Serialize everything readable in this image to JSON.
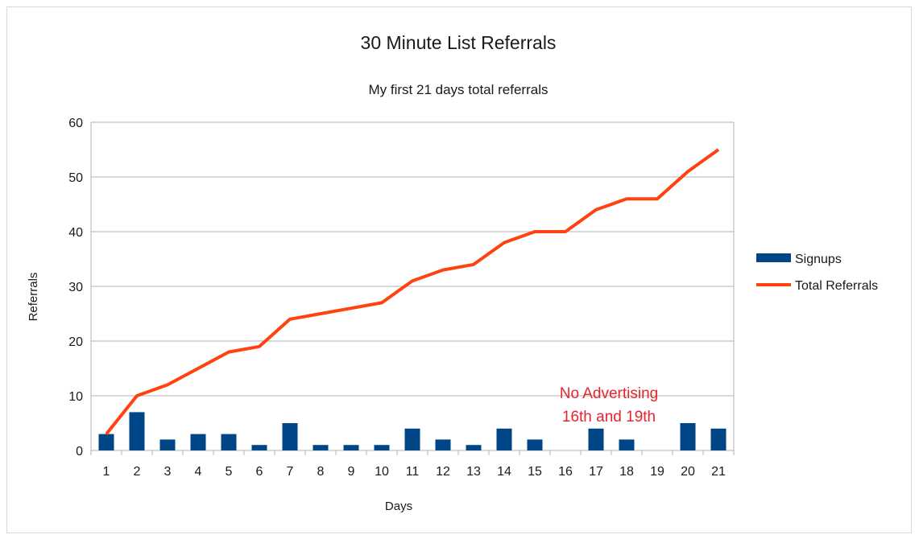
{
  "chart_data": {
    "type": "bar",
    "title": "30 Minute List Referrals",
    "subtitle": "My first 21 days total referrals",
    "xlabel": "Days",
    "ylabel": "Referrals",
    "ylim": [
      0,
      60
    ],
    "yticks": [
      "0",
      "10",
      "20",
      "30",
      "40",
      "50",
      "60"
    ],
    "grid": true,
    "legend_position": "right",
    "categories": [
      "1",
      "2",
      "3",
      "4",
      "5",
      "6",
      "7",
      "8",
      "9",
      "10",
      "11",
      "12",
      "13",
      "14",
      "15",
      "16",
      "17",
      "18",
      "19",
      "20",
      "21"
    ],
    "series": [
      {
        "name": "Signups",
        "type": "bar",
        "color": "#004586",
        "values": [
          3,
          7,
          2,
          3,
          3,
          1,
          5,
          1,
          1,
          1,
          4,
          2,
          1,
          4,
          2,
          0,
          4,
          2,
          0,
          5,
          4
        ]
      },
      {
        "name": "Total Referrals",
        "type": "line",
        "color": "#ff420e",
        "values": [
          3,
          10,
          12,
          15,
          18,
          19,
          24,
          25,
          26,
          27,
          31,
          33,
          34,
          38,
          40,
          40,
          44,
          46,
          46,
          51,
          55
        ]
      }
    ],
    "annotation": {
      "lines": [
        "No Advertising",
        "16th and 19th"
      ],
      "color": "#e8232d"
    }
  }
}
